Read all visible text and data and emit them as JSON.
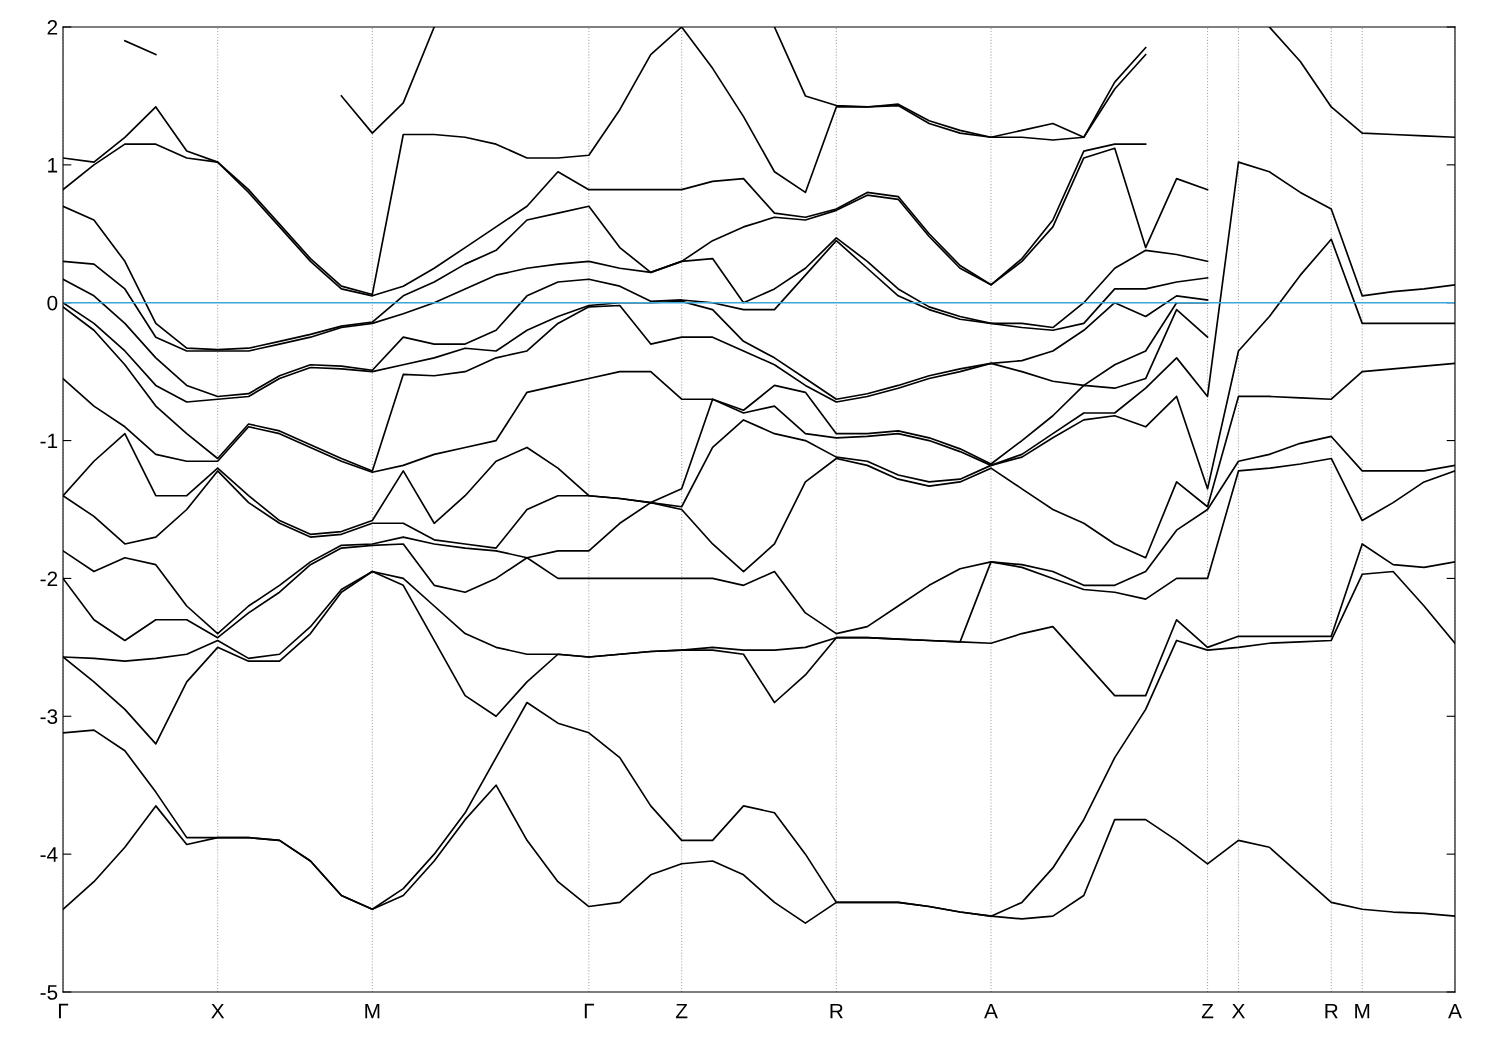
{
  "chart_data": {
    "type": "line",
    "categories": [
      "Γ",
      null,
      null,
      null,
      null,
      "X",
      null,
      null,
      null,
      null,
      "M",
      null,
      null,
      null,
      null,
      null,
      null,
      "Γ",
      null,
      null,
      "Z",
      null,
      null,
      null,
      null,
      "R",
      null,
      null,
      null,
      null,
      "A",
      null,
      null,
      null,
      null,
      null,
      null,
      "Z",
      "X",
      null,
      null,
      "R",
      "M",
      null,
      null,
      "A"
    ],
    "ylim": [
      -5,
      2
    ],
    "yticks": [
      -5,
      -4,
      -3,
      -2,
      -1,
      0,
      1,
      2
    ],
    "grid": "x",
    "line_style": "solid",
    "ref_lines": [
      {
        "axis": "y",
        "value": 0,
        "color": "#3ea6da"
      }
    ],
    "series": [
      {
        "color": "#000000",
        "values": [
          -4.4,
          -4.2,
          -3.95,
          -3.65,
          -3.93,
          -3.88,
          -3.88,
          -3.9,
          -4.05,
          -4.3,
          -4.4,
          -4.3,
          -4.05,
          -3.75,
          -3.5,
          -3.9,
          -4.2,
          -4.38,
          -4.35,
          -4.15,
          -4.07,
          -4.05,
          -4.15,
          -4.35,
          -4.5,
          -4.35,
          -4.35,
          -4.35,
          -4.38,
          -4.42,
          -4.45,
          -4.47,
          -4.45,
          -4.3,
          -3.75,
          -3.75,
          -3.9,
          -4.07,
          -3.9,
          -3.95,
          -4.15,
          -4.35,
          -4.4,
          -4.42,
          -4.43,
          -4.45
        ]
      },
      {
        "color": "#000000",
        "values": [
          -3.12,
          -3.1,
          -3.25,
          -3.55,
          -3.88,
          -3.88,
          -3.88,
          -3.9,
          -4.05,
          -4.3,
          -4.4,
          -4.25,
          -4.0,
          -3.7,
          -3.3,
          -2.9,
          -3.05,
          -3.12,
          -3.3,
          -3.65,
          -3.9,
          -3.9,
          -3.65,
          -3.7,
          -4.0,
          -4.35,
          -4.35,
          -4.35,
          -4.38,
          -4.42,
          -4.45,
          -4.35,
          -4.1,
          -3.75,
          -3.3,
          -2.95,
          -2.45,
          -2.52,
          -2.5,
          -2.47,
          -2.46,
          -2.45,
          -1.97,
          -1.95,
          -2.2,
          -2.47
        ]
      },
      {
        "color": "#000000",
        "values": [
          -2.57,
          -2.75,
          -2.95,
          -3.2,
          -2.75,
          -2.5,
          -2.6,
          -2.6,
          -2.4,
          -2.1,
          -1.95,
          -2.05,
          -2.45,
          -2.85,
          -3.0,
          -2.75,
          -2.55,
          -2.57,
          -2.55,
          -2.53,
          -2.52,
          -2.52,
          -2.55,
          -2.9,
          -2.7,
          -2.43,
          -2.43,
          -2.44,
          -2.45,
          -2.46,
          -2.47,
          -2.4,
          -2.35,
          -2.6,
          -2.85,
          -2.85,
          -2.3,
          -2.5,
          -2.42,
          -2.42,
          -2.42,
          -2.42,
          -1.75,
          -1.9,
          -1.92,
          -1.88
        ]
      },
      {
        "color": "#000000",
        "values": [
          -2.57,
          -2.58,
          -2.6,
          -2.58,
          -2.55,
          -2.45,
          -2.58,
          -2.55,
          -2.35,
          -2.08,
          -1.95,
          -2.0,
          -2.2,
          -2.4,
          -2.5,
          -2.55,
          -2.55,
          -2.57,
          -2.55,
          -2.53,
          -2.52,
          -2.5,
          -2.52,
          -2.52,
          -2.5,
          -2.43,
          -2.43,
          -2.44,
          -2.45,
          -2.46,
          -1.88,
          -1.92,
          -2.0,
          -2.08,
          -2.1,
          -2.15,
          -2.0,
          -2.0,
          -1.22,
          -1.2,
          -1.17,
          -1.13,
          -1.58,
          -1.45,
          -1.3,
          -1.22
        ]
      },
      {
        "color": "#000000",
        "values": [
          -2.0,
          -2.3,
          -2.45,
          -2.3,
          -2.3,
          -2.43,
          -2.25,
          -2.1,
          -1.9,
          -1.78,
          -1.76,
          -1.75,
          -2.05,
          -2.1,
          -2.0,
          -1.85,
          -2.0,
          -2.0,
          -2.0,
          -2.0,
          -2.0,
          -2.0,
          -2.05,
          -1.95,
          -2.25,
          -2.4,
          -2.35,
          -2.2,
          -2.05,
          -1.93,
          -1.88,
          -1.9,
          -1.95,
          -2.05,
          -2.05,
          -1.95,
          -1.65,
          -1.5,
          -1.15,
          -1.1,
          -1.02,
          -0.97,
          -1.22,
          -1.22,
          -1.22,
          -1.18
        ]
      },
      {
        "color": "#000000",
        "values": [
          -1.8,
          -1.95,
          -1.85,
          -1.9,
          -2.2,
          -2.4,
          -2.2,
          -2.05,
          -1.88,
          -1.76,
          -1.75,
          -1.7,
          -1.75,
          -1.78,
          -1.8,
          -1.85,
          -1.8,
          -1.8,
          -1.6,
          -1.45,
          -1.5,
          -1.75,
          -1.95,
          -1.75,
          -1.3,
          -1.13,
          -1.18,
          -1.28,
          -1.33,
          -1.3,
          -1.2,
          -1.35,
          -1.5,
          -1.6,
          -1.75,
          -1.85,
          -1.3,
          -1.48,
          -0.68,
          -0.68,
          -0.69,
          -0.7,
          -0.5,
          -0.48,
          -0.46,
          -0.44
        ]
      },
      {
        "color": "#000000",
        "values": [
          -1.4,
          -1.55,
          -1.75,
          -1.7,
          -1.5,
          -1.22,
          -1.45,
          -1.6,
          -1.7,
          -1.68,
          -1.6,
          -1.6,
          -1.72,
          -1.75,
          -1.78,
          -1.5,
          -1.4,
          -1.4,
          -1.42,
          -1.45,
          -1.48,
          -1.05,
          -0.85,
          -0.95,
          -1.0,
          -1.12,
          -1.15,
          -1.25,
          -1.3,
          -1.28,
          -1.18,
          -1.12,
          -0.98,
          -0.85,
          -0.82,
          -0.9,
          -0.68,
          -1.35,
          -0.35,
          -0.1,
          0.2,
          0.46,
          -0.15,
          -0.15,
          -0.15,
          -0.15
        ]
      },
      {
        "color": "#000000",
        "values": [
          -1.4,
          -1.15,
          -0.95,
          -1.4,
          -1.4,
          -1.2,
          -1.4,
          -1.58,
          -1.68,
          -1.66,
          -1.58,
          -1.22,
          -1.6,
          -1.4,
          -1.15,
          -1.05,
          -1.2,
          -1.4,
          -1.42,
          -1.45,
          -1.35,
          -0.7,
          -0.8,
          -0.75,
          -0.95,
          -0.98,
          -0.97,
          -0.95,
          -1.0,
          -1.08,
          -1.18,
          -1.1,
          -0.95,
          -0.8,
          -0.8,
          -0.62,
          -0.4,
          -0.68,
          1.02,
          0.95,
          0.8,
          0.68,
          0.05,
          0.08,
          0.1,
          0.13
        ]
      },
      {
        "color": "#000000",
        "values": [
          -0.55,
          -0.75,
          -0.9,
          -1.1,
          -1.15,
          -1.15,
          -0.9,
          -0.95,
          -1.05,
          -1.15,
          -1.23,
          -1.18,
          -1.1,
          -1.05,
          -1.0,
          -0.65,
          -0.6,
          -0.55,
          -0.5,
          -0.5,
          -0.7,
          -0.7,
          -0.78,
          -0.6,
          -0.65,
          -0.95,
          -0.95,
          -0.93,
          -0.98,
          -1.06,
          -1.17,
          -1.0,
          -0.82,
          -0.6,
          -0.62,
          -0.55,
          -0.05,
          -0.25,
          null,
          2.0,
          1.75,
          1.42,
          1.23,
          1.22,
          1.21,
          1.2
        ]
      },
      {
        "color": "#000000",
        "values": [
          -0.03,
          -0.2,
          -0.45,
          -0.75,
          -0.95,
          -1.13,
          -0.88,
          -0.93,
          -1.03,
          -1.13,
          -1.22,
          -0.52,
          -0.53,
          -0.5,
          -0.4,
          -0.35,
          -0.15,
          -0.03,
          -0.02,
          -0.3,
          -0.25,
          -0.25,
          -0.35,
          -0.45,
          -0.6,
          -0.72,
          -0.68,
          -0.62,
          -0.55,
          -0.5,
          -0.44,
          -0.5,
          -0.57,
          -0.6,
          -0.45,
          -0.35,
          0.0,
          0.0,
          null,
          null,
          null,
          null,
          null,
          null,
          null,
          null
        ]
      },
      {
        "color": "#000000",
        "values": [
          0.0,
          -0.15,
          -0.35,
          -0.6,
          -0.72,
          -0.7,
          -0.68,
          -0.55,
          -0.47,
          -0.48,
          -0.5,
          -0.45,
          -0.4,
          -0.33,
          -0.35,
          -0.2,
          -0.1,
          -0.02,
          0.0,
          0.0,
          0.01,
          -0.05,
          -0.28,
          -0.4,
          -0.55,
          -0.7,
          -0.66,
          -0.6,
          -0.53,
          -0.48,
          -0.44,
          -0.42,
          -0.35,
          -0.2,
          0.0,
          -0.1,
          0.05,
          0.02,
          null,
          null,
          null,
          null,
          null,
          null,
          null,
          null
        ]
      },
      {
        "color": "#000000",
        "values": [
          0.17,
          0.05,
          -0.15,
          -0.4,
          -0.6,
          -0.68,
          -0.66,
          -0.53,
          -0.45,
          -0.46,
          -0.49,
          -0.25,
          -0.3,
          -0.3,
          -0.2,
          0.05,
          0.15,
          0.17,
          0.12,
          0.01,
          0.02,
          0.0,
          -0.05,
          -0.05,
          0.2,
          0.45,
          0.25,
          0.05,
          -0.05,
          -0.12,
          -0.15,
          -0.18,
          -0.2,
          -0.15,
          0.1,
          0.1,
          0.15,
          0.18,
          null,
          null,
          null,
          null,
          null,
          null,
          null,
          null
        ]
      },
      {
        "color": "#000000",
        "values": [
          0.3,
          0.28,
          0.1,
          -0.25,
          -0.35,
          -0.35,
          -0.35,
          -0.3,
          -0.25,
          -0.18,
          -0.15,
          -0.08,
          0.0,
          0.1,
          0.2,
          0.25,
          0.28,
          0.3,
          0.25,
          0.22,
          0.3,
          0.32,
          0.0,
          0.1,
          0.25,
          0.47,
          0.3,
          0.1,
          -0.03,
          -0.1,
          -0.15,
          -0.15,
          -0.18,
          0.0,
          0.25,
          0.38,
          0.35,
          0.3,
          null,
          null,
          null,
          null,
          null,
          null,
          null,
          null
        ]
      },
      {
        "color": "#000000",
        "values": [
          0.7,
          0.6,
          0.3,
          -0.15,
          -0.33,
          -0.34,
          -0.33,
          -0.28,
          -0.23,
          -0.17,
          -0.14,
          0.05,
          0.15,
          0.28,
          0.38,
          0.6,
          0.65,
          0.7,
          0.4,
          0.22,
          0.3,
          0.45,
          0.55,
          0.62,
          0.6,
          0.67,
          0.78,
          0.75,
          0.48,
          0.25,
          0.13,
          0.3,
          0.55,
          1.05,
          1.12,
          0.4,
          0.9,
          0.82,
          null,
          null,
          null,
          null,
          null,
          null,
          null,
          null
        ]
      },
      {
        "color": "#000000",
        "values": [
          0.82,
          1.0,
          1.15,
          1.15,
          1.05,
          1.02,
          0.8,
          0.55,
          0.3,
          0.1,
          0.05,
          0.12,
          0.25,
          0.4,
          0.55,
          0.7,
          0.95,
          0.82,
          0.82,
          0.82,
          0.82,
          0.88,
          0.9,
          0.65,
          0.62,
          0.68,
          0.8,
          0.77,
          0.5,
          0.27,
          0.13,
          0.32,
          0.6,
          1.1,
          1.15,
          1.15,
          null,
          null,
          null,
          null,
          null,
          null,
          null,
          null,
          null,
          null
        ]
      },
      {
        "color": "#000000",
        "values": [
          1.05,
          1.02,
          1.2,
          1.42,
          1.1,
          1.02,
          0.82,
          0.57,
          0.32,
          0.12,
          0.06,
          1.22,
          1.22,
          1.2,
          1.15,
          1.05,
          1.05,
          1.07,
          1.4,
          1.8,
          2.0,
          1.7,
          1.35,
          0.95,
          0.8,
          1.42,
          1.42,
          1.43,
          1.3,
          1.23,
          1.2,
          1.2,
          1.18,
          1.2,
          1.55,
          1.8,
          null,
          null,
          null,
          null,
          null,
          null,
          null,
          null,
          null,
          null
        ]
      },
      {
        "color": "#000000",
        "values": [
          null,
          null,
          1.9,
          1.8,
          null,
          null,
          null,
          null,
          null,
          1.5,
          1.23,
          1.45,
          2.0,
          null,
          null,
          null,
          null,
          null,
          null,
          null,
          null,
          null,
          null,
          2.0,
          1.5,
          1.43,
          1.42,
          1.44,
          1.32,
          1.25,
          1.2,
          1.25,
          1.3,
          1.2,
          1.6,
          1.85,
          null,
          null,
          null,
          null,
          null,
          null,
          null,
          null,
          null,
          null
        ]
      }
    ]
  }
}
